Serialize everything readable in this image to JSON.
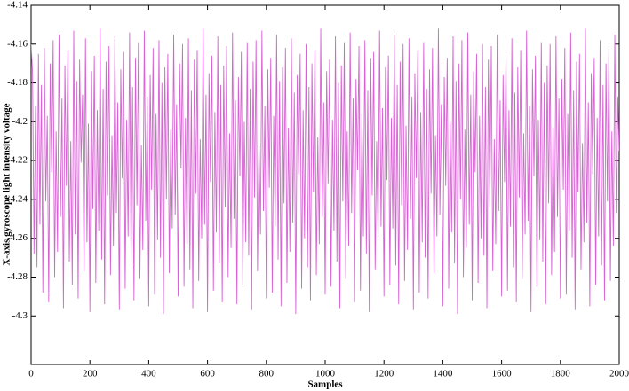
{
  "chart_data": {
    "type": "line",
    "xlabel": "Samples",
    "ylabel": "X-axis gyroscope light intensity voltage",
    "xlim": [
      0,
      2000
    ],
    "xticks": [
      0,
      200,
      400,
      600,
      800,
      1000,
      1200,
      1400,
      1600,
      1800,
      2000
    ],
    "ylim": [
      -4.325,
      -4.14
    ],
    "yticks": [
      -4.14,
      -4.16,
      -4.18,
      -4.2,
      -4.22,
      -4.24,
      -4.26,
      -4.28,
      -4.3
    ],
    "grid": false,
    "x": [
      0,
      5,
      10,
      15,
      20,
      25,
      30,
      35,
      40,
      45,
      50,
      55,
      60,
      65,
      70,
      75,
      80,
      85,
      90,
      95,
      100,
      105,
      110,
      115,
      120,
      125,
      130,
      135,
      140,
      145,
      150,
      155,
      160,
      165,
      170,
      175,
      180,
      185,
      190,
      195,
      200,
      205,
      210,
      215,
      220,
      225,
      230,
      235,
      240,
      245,
      250,
      255,
      260,
      265,
      270,
      275,
      280,
      285,
      290,
      295,
      300,
      305,
      310,
      315,
      320,
      325,
      330,
      335,
      340,
      345,
      350,
      355,
      360,
      365,
      370,
      375,
      380,
      385,
      390,
      395,
      400,
      405,
      410,
      415,
      420,
      425,
      430,
      435,
      440,
      445,
      450,
      455,
      460,
      465,
      470,
      475,
      480,
      485,
      490,
      495,
      500,
      505,
      510,
      515,
      520,
      525,
      530,
      535,
      540,
      545,
      550,
      555,
      560,
      565,
      570,
      575,
      580,
      585,
      590,
      595,
      600,
      605,
      610,
      615,
      620,
      625,
      630,
      635,
      640,
      645,
      650,
      655,
      660,
      665,
      670,
      675,
      680,
      685,
      690,
      695,
      700,
      705,
      710,
      715,
      720,
      725,
      730,
      735,
      740,
      745,
      750,
      755,
      760,
      765,
      770,
      775,
      780,
      785,
      790,
      795,
      800,
      805,
      810,
      815,
      820,
      825,
      830,
      835,
      840,
      845,
      850,
      855,
      860,
      865,
      870,
      875,
      880,
      885,
      890,
      895,
      900,
      905,
      910,
      915,
      920,
      925,
      930,
      935,
      940,
      945,
      950,
      955,
      960,
      965,
      970,
      975,
      980,
      985,
      990,
      995,
      1000,
      1005,
      1010,
      1015,
      1020,
      1025,
      1030,
      1035,
      1040,
      1045,
      1050,
      1055,
      1060,
      1065,
      1070,
      1075,
      1080,
      1085,
      1090,
      1095,
      1100,
      1105,
      1110,
      1115,
      1120,
      1125,
      1130,
      1135,
      1140,
      1145,
      1150,
      1155,
      1160,
      1165,
      1170,
      1175,
      1180,
      1185,
      1190,
      1195,
      1200,
      1205,
      1210,
      1215,
      1220,
      1225,
      1230,
      1235,
      1240,
      1245,
      1250,
      1255,
      1260,
      1265,
      1270,
      1275,
      1280,
      1285,
      1290,
      1295,
      1300,
      1305,
      1310,
      1315,
      1320,
      1325,
      1330,
      1335,
      1340,
      1345,
      1350,
      1355,
      1360,
      1365,
      1370,
      1375,
      1380,
      1385,
      1390,
      1395,
      1400,
      1405,
      1410,
      1415,
      1420,
      1425,
      1430,
      1435,
      1440,
      1445,
      1450,
      1455,
      1460,
      1465,
      1470,
      1475,
      1480,
      1485,
      1490,
      1495,
      1500,
      1505,
      1510,
      1515,
      1520,
      1525,
      1530,
      1535,
      1540,
      1545,
      1550,
      1555,
      1560,
      1565,
      1570,
      1575,
      1580,
      1585,
      1590,
      1595,
      1600,
      1605,
      1610,
      1615,
      1620,
      1625,
      1630,
      1635,
      1640,
      1645,
      1650,
      1655,
      1660,
      1665,
      1670,
      1675,
      1680,
      1685,
      1690,
      1695,
      1700,
      1705,
      1710,
      1715,
      1720,
      1725,
      1730,
      1735,
      1740,
      1745,
      1750,
      1755,
      1760,
      1765,
      1770,
      1775,
      1780,
      1785,
      1790,
      1795,
      1800,
      1805,
      1810,
      1815,
      1820,
      1825,
      1830,
      1835,
      1840,
      1845,
      1850,
      1855,
      1860,
      1865,
      1870,
      1875,
      1880,
      1885,
      1890,
      1895,
      1900,
      1905,
      1910,
      1915,
      1920,
      1925,
      1930,
      1935,
      1940,
      1945,
      1950,
      1955,
      1960,
      1965,
      1970,
      1975,
      1980,
      1985,
      1990,
      1995,
      2000
    ],
    "series": [
      {
        "name": null,
        "color": "#d663d3",
        "values": [
          -4.16,
          -4.175,
          -4.268,
          -4.192,
          -4.275,
          -4.165,
          -4.253,
          -4.181,
          -4.288,
          -4.162,
          -4.241,
          -4.197,
          -4.293,
          -4.17,
          -4.226,
          -4.158,
          -4.28,
          -4.205,
          -4.267,
          -4.155,
          -4.249,
          -4.188,
          -4.296,
          -4.171,
          -4.233,
          -4.163,
          -4.272,
          -4.21,
          -4.284,
          -4.153,
          -4.258,
          -4.179,
          -4.291,
          -4.168,
          -4.221,
          -4.186,
          -4.277,
          -4.157,
          -4.262,
          -4.201,
          -4.298,
          -4.174,
          -4.245,
          -4.166,
          -4.283,
          -4.194,
          -4.256,
          -4.152,
          -4.271,
          -4.183,
          -4.294,
          -4.169,
          -4.238,
          -4.161,
          -4.279,
          -4.207,
          -4.264,
          -4.156,
          -4.247,
          -4.19,
          -4.297,
          -4.173,
          -4.229,
          -4.164,
          -4.286,
          -4.199,
          -4.259,
          -4.154,
          -4.274,
          -4.182,
          -4.292,
          -4.167,
          -4.243,
          -4.159,
          -4.281,
          -4.212,
          -4.266,
          -4.153,
          -4.251,
          -4.187,
          -4.295,
          -4.176,
          -4.235,
          -4.162,
          -4.289,
          -4.196,
          -4.261,
          -4.158,
          -4.27,
          -4.18,
          -4.299,
          -4.172,
          -4.24,
          -4.165,
          -4.278,
          -4.204,
          -4.255,
          -4.155,
          -4.248,
          -4.191,
          -4.29,
          -4.17,
          -4.224,
          -4.16,
          -4.285,
          -4.198,
          -4.263,
          -4.157,
          -4.276,
          -4.184,
          -4.296,
          -4.168,
          -4.237,
          -4.163,
          -4.282,
          -4.209,
          -4.26,
          -4.152,
          -4.253,
          -4.186,
          -4.298,
          -4.175,
          -4.231,
          -4.166,
          -4.287,
          -4.195,
          -4.257,
          -4.156,
          -4.273,
          -4.181,
          -4.293,
          -4.171,
          -4.244,
          -4.161,
          -4.28,
          -4.206,
          -4.265,
          -4.154,
          -4.25,
          -4.189,
          -4.294,
          -4.177,
          -4.228,
          -4.164,
          -4.284,
          -4.2,
          -4.262,
          -4.159,
          -4.269,
          -4.183,
          -4.297,
          -4.169,
          -4.239,
          -4.158,
          -4.277,
          -4.211,
          -4.258,
          -4.153,
          -4.246,
          -4.192,
          -4.291,
          -4.173,
          -4.234,
          -4.167,
          -4.288,
          -4.197,
          -4.254,
          -4.155,
          -4.271,
          -4.179,
          -4.295,
          -4.172,
          -4.242,
          -4.162,
          -4.283,
          -4.203,
          -4.267,
          -4.157,
          -4.252,
          -4.185,
          -4.299,
          -4.176,
          -4.227,
          -4.165,
          -4.286,
          -4.194,
          -4.26,
          -4.16,
          -4.275,
          -4.182,
          -4.292,
          -4.17,
          -4.236,
          -4.163,
          -4.279,
          -4.208,
          -4.263,
          -4.152,
          -4.249,
          -4.19,
          -4.289,
          -4.174,
          -4.232,
          -4.168,
          -4.285,
          -4.199,
          -4.256,
          -4.156,
          -4.272,
          -4.18,
          -4.296,
          -4.171,
          -4.241,
          -4.159,
          -4.281,
          -4.205,
          -4.264,
          -4.154,
          -4.247,
          -4.188,
          -4.293,
          -4.178,
          -4.225,
          -4.161,
          -4.287,
          -4.196,
          -4.259,
          -4.158,
          -4.268,
          -4.184,
          -4.298,
          -4.167,
          -4.238,
          -4.164,
          -4.276,
          -4.21,
          -4.261,
          -4.153,
          -4.254,
          -4.193,
          -4.29,
          -4.172,
          -4.23,
          -4.166,
          -4.284,
          -4.198,
          -4.255,
          -4.155,
          -4.274,
          -4.181,
          -4.294,
          -4.169,
          -4.243,
          -4.16,
          -4.282,
          -4.202,
          -4.266,
          -4.157,
          -4.25,
          -4.187,
          -4.297,
          -4.175,
          -4.229,
          -4.163,
          -4.288,
          -4.195,
          -4.262,
          -4.159,
          -4.27,
          -4.183,
          -4.291,
          -4.173,
          -4.237,
          -4.162,
          -4.278,
          -4.207,
          -4.259,
          -4.152,
          -4.248,
          -4.191,
          -4.295,
          -4.177,
          -4.233,
          -4.167,
          -4.286,
          -4.2,
          -4.257,
          -4.156,
          -4.273,
          -4.179,
          -4.299,
          -4.17,
          -4.24,
          -4.158,
          -4.28,
          -4.204,
          -4.265,
          -4.154,
          -4.253,
          -4.186,
          -4.292,
          -4.174,
          -4.226,
          -4.165,
          -4.283,
          -4.197,
          -4.26,
          -4.16,
          -4.269,
          -4.182,
          -4.296,
          -4.168,
          -4.244,
          -4.161,
          -4.277,
          -4.209,
          -4.263,
          -4.155,
          -4.246,
          -4.189,
          -4.29,
          -4.176,
          -4.231,
          -4.164,
          -4.287,
          -4.194,
          -4.254,
          -4.157,
          -4.275,
          -4.185,
          -4.293,
          -4.172,
          -4.239,
          -4.163,
          -4.281,
          -4.206,
          -4.258,
          -4.153,
          -4.251,
          -4.192,
          -4.298,
          -4.173,
          -4.228,
          -4.166,
          -4.285,
          -4.199,
          -4.261,
          -4.159,
          -4.272,
          -4.18,
          -4.294,
          -4.171,
          -4.242,
          -4.16,
          -4.279,
          -4.203,
          -4.267,
          -4.156,
          -4.249,
          -4.188,
          -4.291,
          -4.178,
          -4.235,
          -4.162,
          -4.289,
          -4.196,
          -4.256,
          -4.154,
          -4.27,
          -4.184,
          -4.297,
          -4.169,
          -4.236,
          -4.165,
          -4.276,
          -4.211,
          -4.262,
          -4.152,
          -4.252,
          -4.19,
          -4.295,
          -4.175,
          -4.227,
          -4.167,
          -4.284,
          -4.198,
          -4.259,
          -4.158,
          -4.274,
          -4.181,
          -4.292,
          -4.17,
          -4.241,
          -4.161,
          -4.282,
          -4.205,
          -4.264,
          -4.155,
          -4.247,
          -4.187,
          -4.215
        ]
      }
    ]
  }
}
